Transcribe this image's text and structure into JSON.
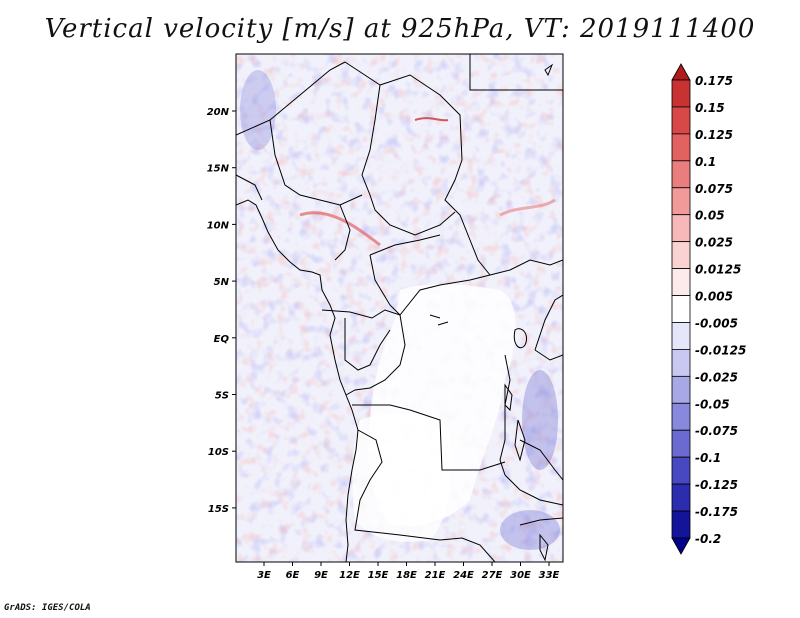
{
  "title": "Vertical velocity [m/s] at 925hPa, VT: 2019111400",
  "credit": "GrADS: IGES/COLA",
  "map": {
    "lon_ticks": [
      "3E",
      "6E",
      "9E",
      "12E",
      "15E",
      "18E",
      "21E",
      "24E",
      "27E",
      "30E",
      "33E"
    ],
    "lat_ticks": [
      "20N",
      "15N",
      "10N",
      "5N",
      "EQ",
      "5S",
      "10S",
      "15S"
    ]
  },
  "colorbar": {
    "levels": [
      "0.175",
      "0.15",
      "0.125",
      "0.1",
      "0.075",
      "0.05",
      "0.025",
      "0.0125",
      "0.005",
      "-0.005",
      "-0.0125",
      "-0.025",
      "-0.05",
      "-0.075",
      "-0.1",
      "-0.125",
      "-0.175",
      "-0.2"
    ],
    "colors": [
      "#b01c1c",
      "#c83232",
      "#d84848",
      "#e26262",
      "#ea7e7e",
      "#f09a9a",
      "#f6b8b8",
      "#fad2d2",
      "#fdeaea",
      "#ffffff",
      "#e6e6fa",
      "#c8c8f0",
      "#a8a8e6",
      "#8888dc",
      "#6a6ad0",
      "#4848c0",
      "#2c2cae",
      "#14149a",
      "#00008c"
    ]
  }
}
